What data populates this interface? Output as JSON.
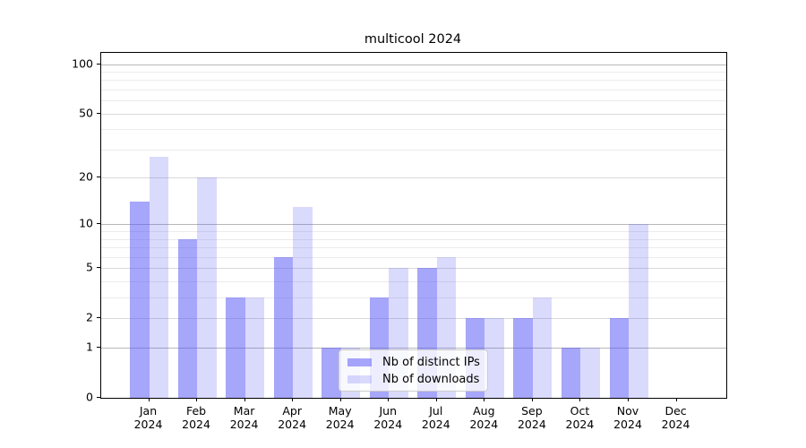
{
  "chart_data": {
    "type": "bar",
    "title": "multicool 2024",
    "categories": [
      "Jan",
      "Feb",
      "Mar",
      "Apr",
      "May",
      "Jun",
      "Jul",
      "Aug",
      "Sep",
      "Oct",
      "Nov",
      "Dec"
    ],
    "category_year_label": "2024",
    "series": [
      {
        "name": "Nb of distinct IPs",
        "color": "rgba(85,85,245,0.52)",
        "values": [
          14,
          8,
          3,
          6,
          1,
          3,
          5,
          2,
          2,
          1,
          2,
          0
        ]
      },
      {
        "name": "Nb of downloads",
        "color": "rgba(85,85,245,0.22)",
        "values": [
          27,
          20,
          3,
          13,
          1,
          5,
          6,
          2,
          3,
          1,
          10,
          0
        ]
      }
    ],
    "y_scale": "log10(1+x)",
    "y_major_ticks": [
      0,
      1,
      2,
      5,
      10,
      20,
      50,
      100
    ],
    "y_minor_gridlines": [
      3,
      4,
      6,
      7,
      8,
      9,
      30,
      40,
      60,
      70,
      80,
      90
    ],
    "ylim": [
      0,
      117
    ],
    "xlabel": "",
    "ylabel": "",
    "grid": true,
    "legend_position": "lower center",
    "colors": {
      "major_gridline_decade": "#b8b8b8",
      "major_gridline_other": "#d9d9d9",
      "minor_gridline": "#ebebeb",
      "axis": "#000000",
      "background": "#ffffff"
    }
  }
}
